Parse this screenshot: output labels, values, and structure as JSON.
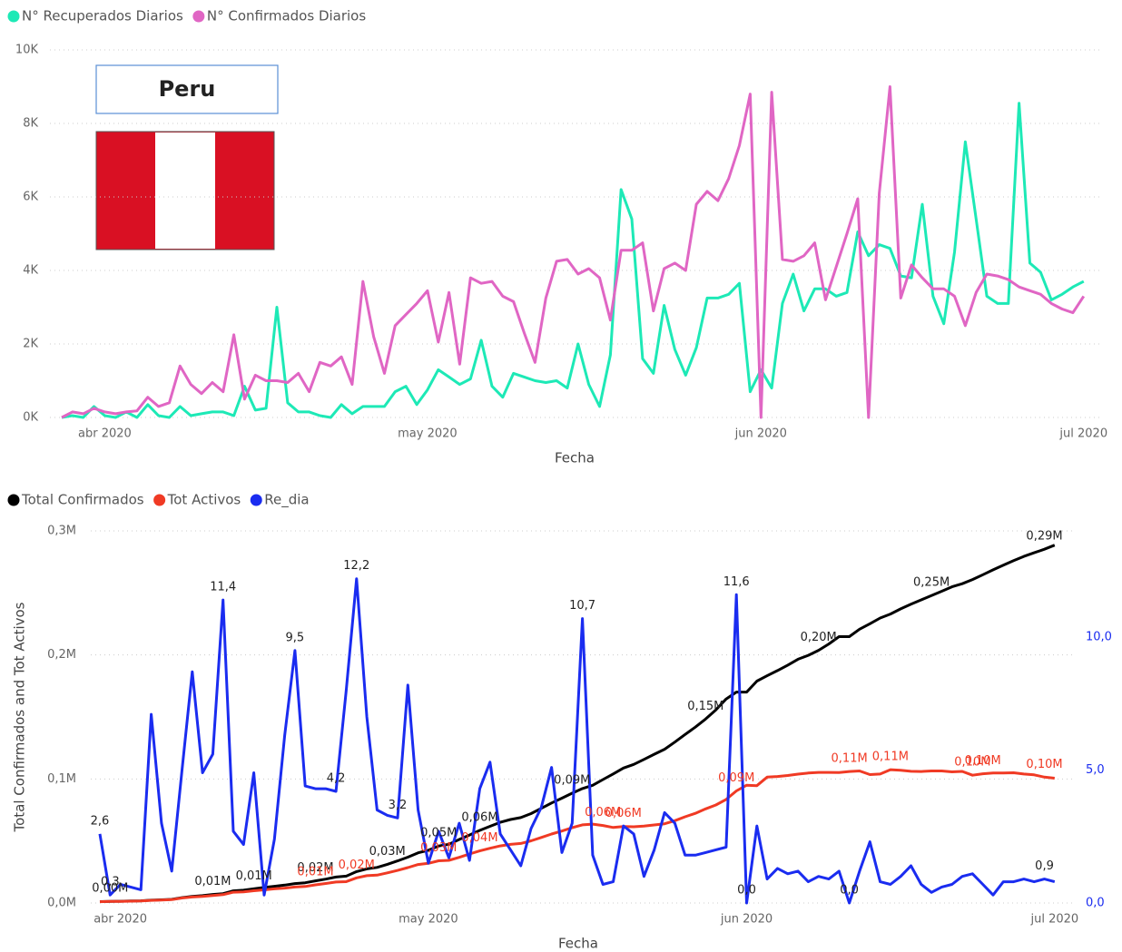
{
  "card": {
    "title": "Peru"
  },
  "chart_data": [
    {
      "type": "line",
      "xlabel": "Fecha",
      "categories": [
        null,
        null,
        null,
        null,
        "abr 2020",
        null,
        null,
        null,
        null,
        null,
        null,
        null,
        null,
        null,
        null,
        null,
        null,
        null,
        null,
        null,
        null,
        null,
        null,
        null,
        null,
        null,
        null,
        null,
        null,
        null,
        null,
        null,
        null,
        null,
        "may 2020",
        null,
        null,
        null,
        null,
        null,
        null,
        null,
        null,
        null,
        null,
        null,
        null,
        null,
        null,
        null,
        null,
        null,
        null,
        null,
        null,
        null,
        null,
        null,
        null,
        null,
        null,
        null,
        null,
        null,
        null,
        "jun 2020",
        null,
        null,
        null,
        null,
        null,
        null,
        null,
        null,
        null,
        null,
        null,
        null,
        null,
        null,
        null,
        null,
        null,
        null,
        null,
        null,
        null,
        null,
        null,
        null,
        null,
        null,
        null,
        null,
        null,
        "jul 2020"
      ],
      "ylim": [
        0,
        10000
      ],
      "yticks": [
        {
          "value": 0,
          "label": "0K"
        },
        {
          "value": 2000,
          "label": "2K"
        },
        {
          "value": 4000,
          "label": "4K"
        },
        {
          "value": 6000,
          "label": "6K"
        },
        {
          "value": 8000,
          "label": "8K"
        },
        {
          "value": 10000,
          "label": "10K"
        }
      ],
      "grid": true,
      "series": [
        {
          "name": "N° Recuperados Diarios",
          "color": "#1de9b6",
          "values": [
            0,
            50,
            0,
            300,
            50,
            0,
            150,
            0,
            350,
            50,
            0,
            300,
            50,
            100,
            150,
            150,
            50,
            850,
            200,
            250,
            3000,
            400,
            150,
            150,
            50,
            0,
            350,
            100,
            300,
            300,
            300,
            700,
            850,
            350,
            750,
            1300,
            1100,
            900,
            1050,
            2100,
            850,
            550,
            1200,
            1100,
            1000,
            950,
            1000,
            800,
            2000,
            900,
            300,
            1700,
            6200,
            5400,
            1600,
            1200,
            3050,
            1850,
            1150,
            1900,
            3250,
            3250,
            3350,
            3650,
            700,
            1300,
            800,
            3100,
            3900,
            2900,
            3500,
            3500,
            3300,
            3400,
            5050,
            4400,
            4700,
            4600,
            3850,
            3800,
            5800,
            3300,
            2550,
            4500,
            7500,
            5400,
            3300,
            3100,
            3100,
            8550,
            4200,
            3950,
            3200,
            3350,
            3550,
            3700
          ]
        },
        {
          "name": "N° Confirmados Diarios",
          "color": "#e066c4",
          "values": [
            0,
            150,
            100,
            250,
            150,
            100,
            150,
            180,
            550,
            300,
            400,
            1400,
            900,
            650,
            950,
            700,
            2250,
            500,
            1150,
            1000,
            1000,
            950,
            1200,
            700,
            1500,
            1400,
            1650,
            900,
            3700,
            2200,
            1200,
            2500,
            2800,
            3100,
            3450,
            2050,
            3400,
            1450,
            3800,
            3650,
            3700,
            3300,
            3150,
            2300,
            1500,
            3250,
            4250,
            4300,
            3900,
            4050,
            3800,
            2650,
            4550,
            4550,
            4750,
            2900,
            4050,
            4200,
            4000,
            5800,
            6150,
            5900,
            6500,
            7400,
            8800,
            0,
            8850,
            4300,
            4250,
            4400,
            4750,
            3200,
            4100,
            5000,
            5950,
            0,
            6100,
            9000,
            3250,
            4150,
            3800,
            3500,
            3500,
            3300,
            2500,
            3400,
            3900,
            3850,
            3750,
            3550,
            3450,
            3350,
            3100,
            2950,
            2850,
            3300
          ]
        }
      ]
    },
    {
      "type": "line",
      "xlabel": "Fecha",
      "ylabel": "Total Confirmados and Tot Activos",
      "categories": [
        null,
        null,
        "abr 2020",
        null,
        null,
        null,
        null,
        null,
        null,
        null,
        null,
        null,
        null,
        null,
        null,
        null,
        null,
        null,
        null,
        null,
        null,
        null,
        null,
        null,
        null,
        null,
        null,
        null,
        null,
        null,
        null,
        null,
        "may 2020",
        null,
        null,
        null,
        null,
        null,
        null,
        null,
        null,
        null,
        null,
        null,
        null,
        null,
        null,
        null,
        null,
        null,
        null,
        null,
        null,
        null,
        null,
        null,
        null,
        null,
        null,
        null,
        null,
        null,
        null,
        "jun 2020",
        null,
        null,
        null,
        null,
        null,
        null,
        null,
        null,
        null,
        null,
        null,
        null,
        null,
        null,
        null,
        null,
        null,
        null,
        null,
        null,
        null,
        null,
        null,
        null,
        null,
        null,
        null,
        null,
        null,
        "jul 2020"
      ],
      "ylim": [
        0,
        300000
      ],
      "yticks": [
        {
          "value": 0,
          "label": "0,0M"
        },
        {
          "value": 100000,
          "label": "0,1M"
        },
        {
          "value": 200000,
          "label": "0,2M"
        },
        {
          "value": 300000,
          "label": "0,3M"
        }
      ],
      "y2lim": [
        0,
        14
      ],
      "y2ticks": [
        {
          "value": 0,
          "label": "0,0"
        },
        {
          "value": 5,
          "label": "5,0"
        },
        {
          "value": 10,
          "label": "10,0"
        }
      ],
      "grid": true,
      "series": [
        {
          "name": "Total Confirmados",
          "color": "#000000",
          "label_color": "#222222",
          "values": [
            1065,
            1323,
            1414,
            1595,
            1746,
            2281,
            2561,
            2954,
            4342,
            5256,
            5897,
            6848,
            7519,
            9784,
            10303,
            11475,
            12491,
            13489,
            14420,
            15628,
            16325,
            17837,
            19250,
            20914,
            21648,
            25331,
            27517,
            28699,
            31190,
            33931,
            36976,
            40459,
            42534,
            45928,
            47372,
            51189,
            54817,
            58526,
            61847,
            65015,
            67307,
            68822,
            72059,
            76306,
            80604,
            84495,
            88541,
            92273,
            94933,
            99483,
            104020,
            108769,
            111698,
            115754,
            119959,
            123979,
            129751,
            135905,
            141779,
            148285,
            155671,
            164476,
            170039,
            170039,
            178914,
            183198,
            187400,
            191758,
            196515,
            199696,
            203736,
            208823,
            214788,
            214788,
            220749,
            225132,
            229736,
            232992,
            237156,
            240908,
            244388,
            247925,
            251338,
            254936,
            257447,
            260810,
            264689,
            268602,
            272364,
            275989,
            279419,
            282365,
            285213,
            288477
          ],
          "value_labels": [
            null,
            "0,00M",
            null,
            null,
            null,
            null,
            null,
            null,
            null,
            null,
            null,
            "0,01M",
            null,
            null,
            null,
            "0,01M",
            null,
            null,
            null,
            null,
            null,
            "0,02M",
            null,
            null,
            null,
            null,
            null,
            null,
            "0,03M",
            null,
            null,
            null,
            null,
            "0,05M",
            null,
            null,
            null,
            "0,06M",
            null,
            null,
            null,
            null,
            null,
            null,
            null,
            null,
            "0,09M",
            null,
            null,
            null,
            null,
            null,
            null,
            null,
            null,
            null,
            null,
            null,
            null,
            "0,15M",
            null,
            null,
            null,
            null,
            null,
            null,
            null,
            null,
            null,
            null,
            "0,20M",
            null,
            null,
            null,
            null,
            null,
            null,
            null,
            null,
            null,
            null,
            "0,25M",
            null,
            null,
            null,
            null,
            null,
            null,
            null,
            null,
            null,
            null,
            "0,29M",
            null
          ]
        },
        {
          "name": "Tot Activos",
          "color": "#f03a24",
          "label_color": "#f03a24",
          "values": [
            1000,
            1250,
            1350,
            1500,
            1600,
            2100,
            2350,
            2700,
            4000,
            4800,
            5300,
            6100,
            6700,
            8700,
            9000,
            9900,
            10600,
            11400,
            12000,
            12900,
            13300,
            14600,
            15700,
            16900,
            17200,
            20300,
            22000,
            22500,
            24300,
            26300,
            28500,
            31000,
            32000,
            34000,
            34400,
            36800,
            39500,
            42000,
            44100,
            46000,
            47300,
            48000,
            50100,
            52800,
            55600,
            58000,
            60700,
            63000,
            63600,
            62500,
            60900,
            61700,
            61500,
            62000,
            62900,
            63900,
            66400,
            69500,
            72300,
            75900,
            79000,
            83500,
            90400,
            95000,
            94600,
            101500,
            102000,
            102800,
            103900,
            104800,
            105300,
            105300,
            105200,
            106000,
            106500,
            103500,
            104000,
            107500,
            107000,
            106200,
            106000,
            106500,
            106500,
            105700,
            106100,
            103000,
            104200,
            104800,
            104800,
            105000,
            104000,
            103300,
            101500,
            100600
          ],
          "value_labels": [
            null,
            null,
            null,
            null,
            null,
            null,
            null,
            null,
            null,
            null,
            null,
            null,
            null,
            null,
            null,
            null,
            null,
            null,
            null,
            null,
            null,
            "0,01M",
            null,
            null,
            null,
            "0,02M",
            null,
            null,
            null,
            null,
            null,
            null,
            null,
            "0,03M",
            null,
            null,
            null,
            "0,04M",
            null,
            null,
            null,
            null,
            null,
            null,
            null,
            null,
            null,
            null,
            null,
            "0,06M",
            null,
            "0,06M",
            null,
            null,
            null,
            null,
            null,
            null,
            null,
            null,
            null,
            null,
            "0,09M",
            null,
            null,
            null,
            null,
            null,
            null,
            null,
            null,
            null,
            null,
            "0,11M",
            null,
            null,
            null,
            "0,11M",
            null,
            null,
            null,
            null,
            null,
            null,
            null,
            "0,10M",
            "0,10M",
            null,
            null,
            null,
            null,
            null,
            "0,10M",
            null
          ]
        },
        {
          "name": "Re_dia",
          "color": "#1a2cf0",
          "label_color": "#222222",
          "axis": "y2",
          "values": [
            2.6,
            0.3,
            0.7,
            0.6,
            0.5,
            7.1,
            3.0,
            1.2,
            5.0,
            8.7,
            4.9,
            5.6,
            11.4,
            2.7,
            2.2,
            4.9,
            0.3,
            2.4,
            6.3,
            9.5,
            4.4,
            4.3,
            4.3,
            4.2,
            8.0,
            12.2,
            7.0,
            3.5,
            3.3,
            3.2,
            8.2,
            3.5,
            1.5,
            2.7,
            1.7,
            3.0,
            1.6,
            4.3,
            5.3,
            2.6,
            2.0,
            1.4,
            2.8,
            3.6,
            5.1,
            1.9,
            3.0,
            10.7,
            1.8,
            0.7,
            0.8,
            2.9,
            2.6,
            1.0,
            2.0,
            3.4,
            3.0,
            1.8,
            1.8,
            1.9,
            2.0,
            2.1,
            11.6,
            0.0,
            2.9,
            0.9,
            1.3,
            1.1,
            1.2,
            0.8,
            1.0,
            0.9,
            1.2,
            0.0,
            1.2,
            2.3,
            0.8,
            0.7,
            1.0,
            1.4,
            0.7,
            0.4,
            0.6,
            0.7,
            1.0,
            1.1,
            0.7,
            0.3,
            0.8,
            0.8,
            0.9,
            0.8,
            0.9,
            0.8
          ],
          "value_labels": [
            "2,6",
            "0,3",
            null,
            null,
            null,
            null,
            null,
            null,
            null,
            null,
            null,
            null,
            "11,4",
            null,
            null,
            null,
            null,
            null,
            null,
            "9,5",
            null,
            null,
            null,
            "4,2",
            null,
            "12,2",
            null,
            null,
            null,
            "3,2",
            null,
            null,
            null,
            null,
            null,
            null,
            null,
            null,
            null,
            null,
            null,
            null,
            null,
            null,
            null,
            null,
            null,
            "10,7",
            null,
            null,
            null,
            null,
            null,
            null,
            null,
            null,
            null,
            null,
            null,
            null,
            null,
            null,
            "11,6",
            "0,0",
            null,
            null,
            null,
            null,
            null,
            null,
            null,
            null,
            null,
            "0,0",
            null,
            null,
            null,
            null,
            null,
            null,
            null,
            null,
            null,
            null,
            null,
            null,
            null,
            null,
            null,
            null,
            null,
            null,
            "0,9",
            null
          ]
        }
      ]
    }
  ]
}
